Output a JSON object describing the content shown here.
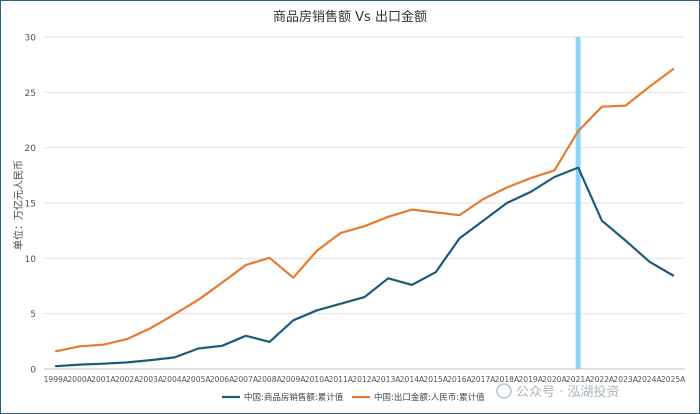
{
  "chart_data": {
    "type": "line",
    "title": "商品房销售额 Vs 出口金额",
    "ylabel": "单位：万亿元人民币",
    "xlabel": "",
    "ylim": [
      0,
      30
    ],
    "yticks": [
      0,
      5,
      10,
      15,
      20,
      25,
      30
    ],
    "grid": true,
    "legend": "bottom",
    "categories": [
      "1999A",
      "2000A",
      "2001A",
      "2002A",
      "2003A",
      "2004A",
      "2005A",
      "2006A",
      "2007A",
      "2008A",
      "2009A",
      "2010A",
      "2011A",
      "2012A",
      "2013A",
      "2014A",
      "2015A",
      "2016A",
      "2017A",
      "2018A",
      "2019A",
      "2020A",
      "2021A",
      "2022A",
      "2023A",
      "2024A",
      "2025A"
    ],
    "series": [
      {
        "name": "中国:商品房销售额:累计值",
        "color": "#1f5a7a",
        "values": [
          0.25,
          0.4,
          0.48,
          0.6,
          0.8,
          1.05,
          1.85,
          2.1,
          3.0,
          2.45,
          4.4,
          5.3,
          5.9,
          6.5,
          8.2,
          7.6,
          8.75,
          11.8,
          13.4,
          15.0,
          16.0,
          17.35,
          18.2,
          13.4,
          11.6,
          9.7,
          8.45
        ]
      },
      {
        "name": "中国:出口金额:人民币:累计值",
        "color": "#e87a2e",
        "values": [
          1.6,
          2.05,
          2.2,
          2.7,
          3.7,
          4.95,
          6.25,
          7.8,
          9.4,
          10.05,
          8.25,
          10.7,
          12.3,
          12.9,
          13.75,
          14.4,
          14.15,
          13.9,
          15.35,
          16.4,
          17.25,
          17.95,
          21.5,
          23.7,
          23.8,
          25.5,
          27.1
        ]
      }
    ],
    "highlight": {
      "category": "2021A",
      "color": "#8fd3f4"
    }
  },
  "watermark": {
    "text": "公众号 · 泓湖投资"
  }
}
